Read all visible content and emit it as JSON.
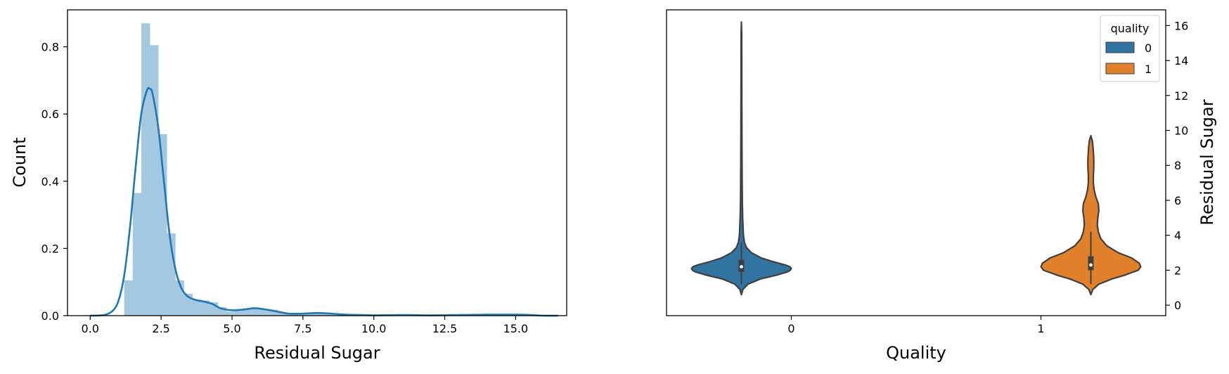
{
  "chart_data": [
    {
      "type": "histogram",
      "title": "",
      "xlabel": "Residual Sugar",
      "ylabel": "Count",
      "xlim": [
        -0.8,
        16.8
      ],
      "ylim": [
        0,
        0.91
      ],
      "xticks": [
        0.0,
        2.5,
        5.0,
        7.5,
        10.0,
        12.5,
        15.0
      ],
      "xtick_labels": [
        "0.0",
        "2.5",
        "5.0",
        "7.5",
        "10.0",
        "12.5",
        "15.0"
      ],
      "yticks": [
        0.0,
        0.2,
        0.4,
        0.6,
        0.8
      ],
      "ytick_labels": [
        "0.0",
        "0.2",
        "0.4",
        "0.6",
        "0.8"
      ],
      "grid": false,
      "bar_color": "#a5c8e1",
      "line_color": "#1f77b4",
      "bins": [
        {
          "x0": 1.2,
          "x1": 1.5,
          "value": 0.105
        },
        {
          "x0": 1.5,
          "x1": 1.8,
          "value": 0.365
        },
        {
          "x0": 1.8,
          "x1": 2.1,
          "value": 0.87
        },
        {
          "x0": 2.1,
          "x1": 2.4,
          "value": 0.805
        },
        {
          "x0": 2.4,
          "x1": 2.7,
          "value": 0.54
        },
        {
          "x0": 2.7,
          "x1": 3.0,
          "value": 0.245
        },
        {
          "x0": 3.0,
          "x1": 3.3,
          "value": 0.105
        },
        {
          "x0": 3.3,
          "x1": 3.6,
          "value": 0.065
        },
        {
          "x0": 3.6,
          "x1": 3.9,
          "value": 0.048
        },
        {
          "x0": 3.9,
          "x1": 4.2,
          "value": 0.045
        },
        {
          "x0": 4.2,
          "x1": 4.5,
          "value": 0.04
        },
        {
          "x0": 4.5,
          "x1": 4.8,
          "value": 0.025
        },
        {
          "x0": 4.8,
          "x1": 5.1,
          "value": 0.012
        },
        {
          "x0": 5.1,
          "x1": 5.4,
          "value": 0.02
        },
        {
          "x0": 5.4,
          "x1": 5.7,
          "value": 0.022
        },
        {
          "x0": 5.7,
          "x1": 6.0,
          "value": 0.022
        },
        {
          "x0": 6.0,
          "x1": 6.3,
          "value": 0.02
        },
        {
          "x0": 6.3,
          "x1": 6.6,
          "value": 0.018
        },
        {
          "x0": 6.6,
          "x1": 6.9,
          "value": 0.01
        },
        {
          "x0": 6.9,
          "x1": 7.2,
          "value": 0.006
        },
        {
          "x0": 7.2,
          "x1": 7.5,
          "value": 0.004
        },
        {
          "x0": 7.5,
          "x1": 7.8,
          "value": 0.008
        },
        {
          "x0": 7.8,
          "x1": 8.1,
          "value": 0.008
        },
        {
          "x0": 8.1,
          "x1": 8.4,
          "value": 0.006
        },
        {
          "x0": 8.4,
          "x1": 8.7,
          "value": 0.005
        },
        {
          "x0": 8.7,
          "x1": 9.0,
          "value": 0.004
        },
        {
          "x0": 9.0,
          "x1": 9.3,
          "value": 0.004
        }
      ],
      "kde": {
        "x": [
          0.0,
          0.5,
          0.8,
          1.0,
          1.2,
          1.4,
          1.6,
          1.8,
          2.0,
          2.1,
          2.2,
          2.4,
          2.6,
          2.8,
          3.0,
          3.2,
          3.4,
          3.6,
          3.8,
          4.0,
          4.3,
          4.6,
          5.0,
          5.4,
          5.8,
          6.2,
          6.6,
          7.0,
          7.5,
          8.0,
          8.5,
          9.0,
          9.5,
          10.0,
          11.0,
          12.0,
          13.0,
          14.0,
          15.0,
          15.5,
          16.0,
          16.5
        ],
        "y": [
          0.0,
          0.002,
          0.015,
          0.045,
          0.12,
          0.26,
          0.44,
          0.6,
          0.67,
          0.675,
          0.66,
          0.56,
          0.4,
          0.24,
          0.14,
          0.085,
          0.06,
          0.05,
          0.045,
          0.042,
          0.035,
          0.022,
          0.016,
          0.018,
          0.022,
          0.018,
          0.012,
          0.006,
          0.006,
          0.008,
          0.006,
          0.003,
          0.002,
          0.001,
          0.002,
          0.001,
          0.002,
          0.003,
          0.003,
          0.002,
          0.0,
          0.0
        ]
      }
    },
    {
      "type": "violin",
      "title": "",
      "xlabel": "Quality",
      "ylabel": "Residual Sugar",
      "categories": [
        "0",
        "1"
      ],
      "ylim": [
        -0.6,
        16.9
      ],
      "yticks": [
        0,
        2,
        4,
        6,
        8,
        10,
        12,
        14,
        16
      ],
      "ytick_labels": [
        "0",
        "2",
        "4",
        "6",
        "8",
        "10",
        "12",
        "14",
        "16"
      ],
      "yaxis_side": "right",
      "grid": false,
      "legend": {
        "title": "quality",
        "position": "top-right",
        "entries": [
          "0",
          "1"
        ]
      },
      "series": [
        {
          "name": "0",
          "color": "#3274a1",
          "category": "0",
          "box": {
            "q1": 1.9,
            "median": 2.2,
            "q3": 2.6,
            "whisker_low": 1.2,
            "whisker_high": 3.6
          },
          "density": {
            "y": [
              0.6,
              0.9,
              1.2,
              1.5,
              1.7,
              1.9,
              2.0,
              2.1,
              2.2,
              2.3,
              2.5,
              2.7,
              3.0,
              3.3,
              3.6,
              4.0,
              5.0,
              6.0,
              8.0,
              10.0,
              12.0,
              14.0,
              15.5,
              16.2
            ],
            "w": [
              0.0,
              0.03,
              0.13,
              0.38,
              0.68,
              0.92,
              0.98,
              1.0,
              0.97,
              0.88,
              0.62,
              0.4,
              0.2,
              0.1,
              0.06,
              0.04,
              0.025,
              0.018,
              0.013,
              0.01,
              0.008,
              0.007,
              0.006,
              0.0
            ]
          }
        },
        {
          "name": "1",
          "color": "#e1812c",
          "category": "1",
          "box": {
            "q1": 2.0,
            "median": 2.3,
            "q3": 2.8,
            "whisker_low": 1.2,
            "whisker_high": 4.2
          },
          "density": {
            "y": [
              0.6,
              0.9,
              1.2,
              1.5,
              1.7,
              1.9,
              2.0,
              2.2,
              2.4,
              2.7,
              3.0,
              3.4,
              3.8,
              4.2,
              4.6,
              5.0,
              5.4,
              5.8,
              6.2,
              6.6,
              7.0,
              7.4,
              7.8,
              8.2,
              8.6,
              9.0,
              9.4,
              9.7
            ],
            "w": [
              0.0,
              0.04,
              0.16,
              0.42,
              0.66,
              0.85,
              0.95,
              1.0,
              0.97,
              0.82,
              0.55,
              0.32,
              0.2,
              0.15,
              0.13,
              0.14,
              0.16,
              0.15,
              0.1,
              0.065,
              0.05,
              0.05,
              0.058,
              0.06,
              0.055,
              0.045,
              0.03,
              0.0
            ]
          }
        }
      ]
    }
  ]
}
